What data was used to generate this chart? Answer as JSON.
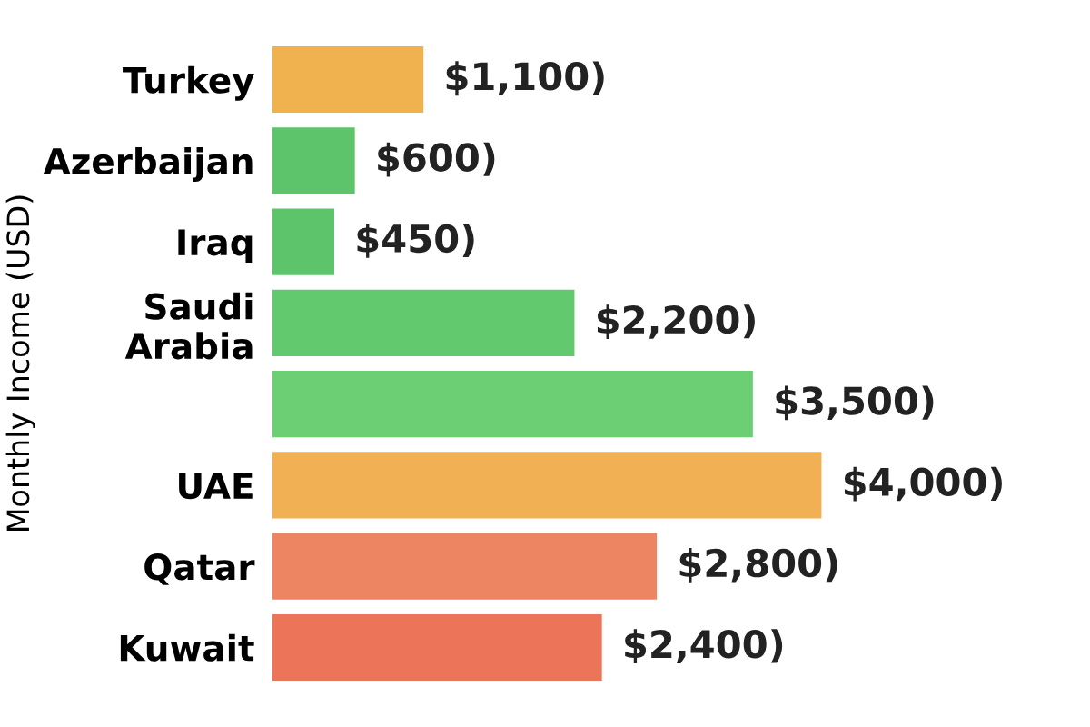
{
  "chart_data": {
    "type": "bar",
    "orientation": "horizontal",
    "ylabel": "Monthly Income (USD)",
    "categories": [
      "Turkey",
      "Azerbaijan",
      "Iraq",
      "Saudi\nArabia",
      null,
      "UAE",
      "Qatar",
      "Kuwait"
    ],
    "values": [
      1100,
      600,
      450,
      2200,
      3500,
      4000,
      2800,
      2400
    ],
    "colors": [
      "#f0b24e",
      "#5dc46c",
      "#5dc46c",
      "#62c96e",
      "#6dcf74",
      "#f2b054",
      "#ee8562",
      "#eb7459"
    ],
    "value_labels": [
      "$1,100)",
      "$600)",
      "$450)",
      "$2,200)",
      "$3,500)",
      "$4,000)",
      "$2,800)",
      "$2,400)"
    ],
    "tick_labels": "y",
    "grid": false
  }
}
